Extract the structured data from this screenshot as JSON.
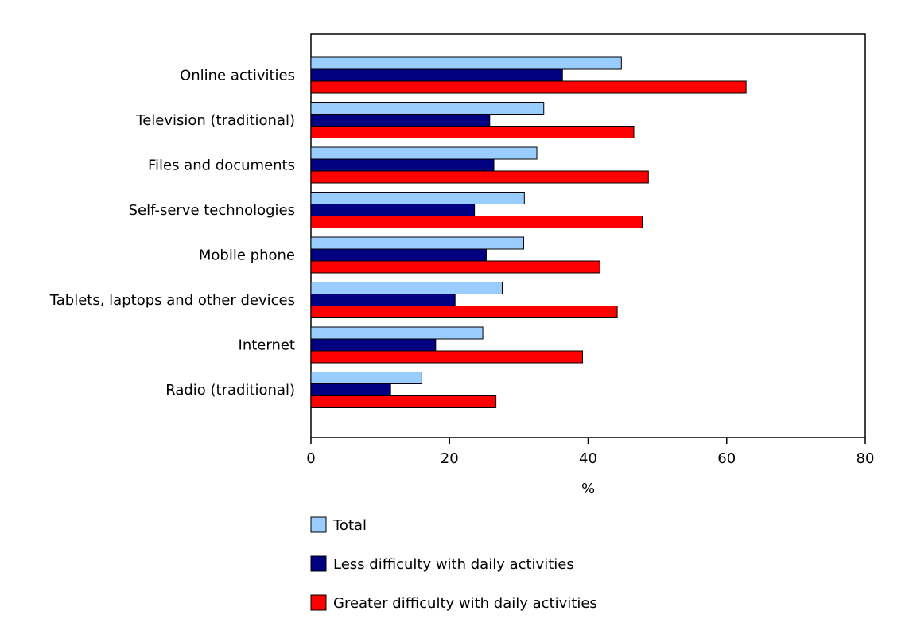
{
  "chart_data": {
    "type": "bar",
    "orientation": "horizontal",
    "title": "",
    "xlabel": "%",
    "ylabel": "",
    "xlim": [
      0,
      80
    ],
    "xticks": [
      0,
      20,
      40,
      60,
      80
    ],
    "grid": false,
    "legend_position": "bottom",
    "categories": [
      "Online activities",
      "Television (traditional)",
      "Files and documents",
      "Self-serve technologies",
      "Mobile phone",
      "Tablets, laptops and other devices",
      "Internet",
      "Radio (traditional)"
    ],
    "series": [
      {
        "name": "Total",
        "color": "#99ccff",
        "values": [
          44.8,
          33.6,
          32.6,
          30.8,
          30.7,
          27.6,
          24.8,
          16.0
        ]
      },
      {
        "name": "Less difficulty with daily activities",
        "color": "#000080",
        "values": [
          36.3,
          25.8,
          26.4,
          23.6,
          25.3,
          20.8,
          18.0,
          11.5
        ]
      },
      {
        "name": "Greater difficulty with daily activities",
        "color": "#ff0000",
        "values": [
          62.8,
          46.6,
          48.7,
          47.8,
          41.7,
          44.2,
          39.2,
          26.7
        ]
      }
    ]
  }
}
